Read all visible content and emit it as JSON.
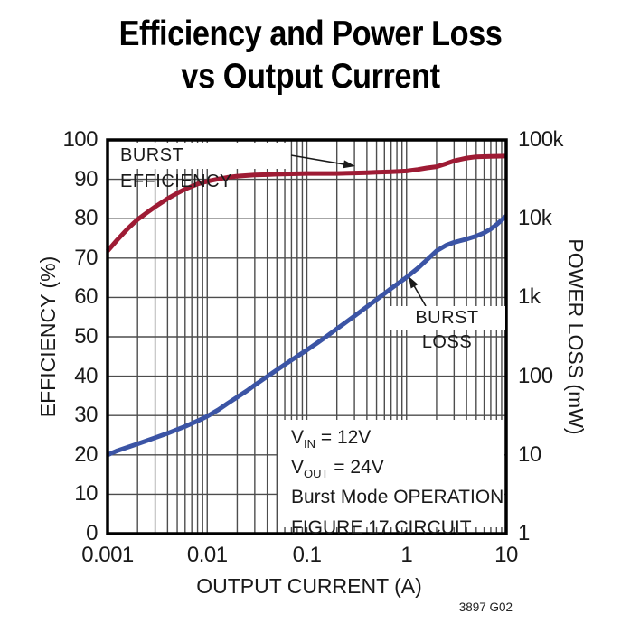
{
  "title": {
    "line1": "Efficiency and Power Loss",
    "line2": "vs Output Current"
  },
  "footnote": "3897 G02",
  "curve_labels": {
    "efficiency": "BURST EFFICIENCY",
    "loss": "BURST LOSS"
  },
  "conditions": [
    {
      "pre": "V",
      "sub": "IN",
      "post": " = 12V"
    },
    {
      "pre": "V",
      "sub": "OUT",
      "post": " = 24V"
    },
    {
      "pre": "Burst Mode OPERATION",
      "sub": "",
      "post": ""
    },
    {
      "pre": "FIGURE 17 CIRCUIT",
      "sub": "",
      "post": ""
    }
  ],
  "colors": {
    "efficiency_curve": "#9e1b34",
    "loss_curve": "#3b54a5",
    "grid": "#4d4d4d",
    "frame": "#000000"
  },
  "chart_data": {
    "type": "line",
    "title": "Efficiency and Power Loss vs Output Current",
    "grid": true,
    "x_axis": {
      "label": "OUTPUT CURRENT (A)",
      "scale": "log",
      "min": 0.001,
      "max": 10,
      "tick_labels": [
        "0.001",
        "0.01",
        "0.1",
        "1",
        "10"
      ],
      "tick_values": [
        0.001,
        0.01,
        0.1,
        1,
        10
      ]
    },
    "y_left": {
      "label": "EFFICIENCY (%)",
      "scale": "linear",
      "min": 0,
      "max": 100,
      "tick_labels": [
        "100",
        "90",
        "80",
        "70",
        "60",
        "50",
        "40",
        "30",
        "20",
        "10",
        "0"
      ],
      "tick_values": [
        100,
        90,
        80,
        70,
        60,
        50,
        40,
        30,
        20,
        10,
        0
      ]
    },
    "y_right": {
      "label": "POWER LOSS (mW)",
      "scale": "log",
      "min": 1,
      "max": 100000,
      "tick_labels": [
        "100k",
        "10k",
        "1k",
        "100",
        "10",
        "1"
      ],
      "tick_values": [
        100000,
        10000,
        1000,
        100,
        10,
        1
      ]
    },
    "series": [
      {
        "name": "BURST EFFICIENCY",
        "axis": "left",
        "units": "%",
        "color": "#9e1b34",
        "points": [
          [
            0.001,
            71.8
          ],
          [
            0.00125,
            74.6
          ],
          [
            0.0016,
            77.5
          ],
          [
            0.002,
            79.8
          ],
          [
            0.0025,
            81.6
          ],
          [
            0.003,
            83.0
          ],
          [
            0.004,
            85.1
          ],
          [
            0.005,
            86.5
          ],
          [
            0.006,
            87.5
          ],
          [
            0.008,
            88.8
          ],
          [
            0.01,
            89.5
          ],
          [
            0.013,
            90.1
          ],
          [
            0.016,
            90.5
          ],
          [
            0.02,
            90.8
          ],
          [
            0.03,
            91.1
          ],
          [
            0.04,
            91.2
          ],
          [
            0.05,
            91.3
          ],
          [
            0.07,
            91.4
          ],
          [
            0.1,
            91.5
          ],
          [
            0.15,
            91.5
          ],
          [
            0.2,
            91.5
          ],
          [
            0.3,
            91.6
          ],
          [
            0.4,
            91.7
          ],
          [
            0.5,
            91.8
          ],
          [
            0.7,
            91.9
          ],
          [
            1,
            92.1
          ],
          [
            1.3,
            92.5
          ],
          [
            1.6,
            92.9
          ],
          [
            2,
            93.2
          ],
          [
            2.5,
            94.0
          ],
          [
            3,
            94.7
          ],
          [
            4,
            95.4
          ],
          [
            5,
            95.7
          ],
          [
            7,
            95.8
          ],
          [
            10,
            95.9
          ]
        ]
      },
      {
        "name": "BURST LOSS",
        "axis": "right",
        "units": "mW",
        "color": "#3b54a5",
        "points": [
          [
            0.001,
            10
          ],
          [
            0.00125,
            11.3
          ],
          [
            0.0016,
            12.5
          ],
          [
            0.002,
            13.8
          ],
          [
            0.0025,
            15.2
          ],
          [
            0.003,
            16.5
          ],
          [
            0.004,
            18.8
          ],
          [
            0.005,
            21
          ],
          [
            0.006,
            23
          ],
          [
            0.008,
            27
          ],
          [
            0.01,
            31
          ],
          [
            0.013,
            37.5
          ],
          [
            0.016,
            45
          ],
          [
            0.02,
            54
          ],
          [
            0.025,
            65
          ],
          [
            0.03,
            77
          ],
          [
            0.04,
            99
          ],
          [
            0.05,
            120
          ],
          [
            0.07,
            160
          ],
          [
            0.1,
            215
          ],
          [
            0.13,
            270
          ],
          [
            0.16,
            325
          ],
          [
            0.2,
            400
          ],
          [
            0.25,
            490
          ],
          [
            0.3,
            580
          ],
          [
            0.4,
            760
          ],
          [
            0.5,
            940
          ],
          [
            0.7,
            1300
          ],
          [
            1,
            1800
          ],
          [
            1.3,
            2350
          ],
          [
            1.6,
            3000
          ],
          [
            2,
            3900
          ],
          [
            2.5,
            4600
          ],
          [
            3,
            5000
          ],
          [
            4,
            5500
          ],
          [
            5,
            6000
          ],
          [
            6,
            6600
          ],
          [
            7,
            7400
          ],
          [
            8,
            8400
          ],
          [
            10,
            10800
          ]
        ]
      }
    ]
  }
}
